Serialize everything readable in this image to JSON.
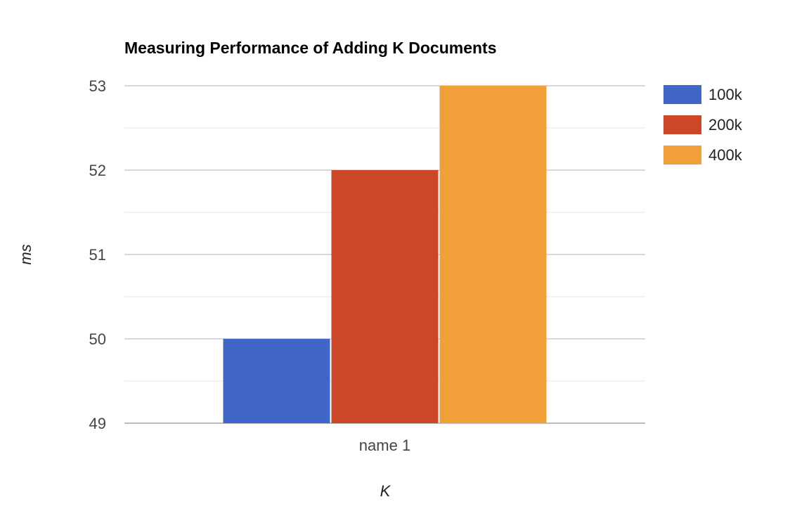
{
  "chart_data": {
    "type": "bar",
    "title": "Measuring Performance of Adding K Documents",
    "xlabel": "K",
    "ylabel": "ms",
    "categories": [
      "name 1"
    ],
    "series": [
      {
        "name": "100k",
        "values": [
          50
        ],
        "color": "#4067c7"
      },
      {
        "name": "200k",
        "values": [
          52
        ],
        "color": "#cc4628"
      },
      {
        "name": "400k",
        "values": [
          53
        ],
        "color": "#f19f39"
      }
    ],
    "ylim": [
      49,
      53
    ],
    "yticks": [
      "49",
      "50",
      "51",
      "52",
      "53"
    ],
    "minor_gridlines": true,
    "grid": true,
    "legend_position": "right"
  }
}
